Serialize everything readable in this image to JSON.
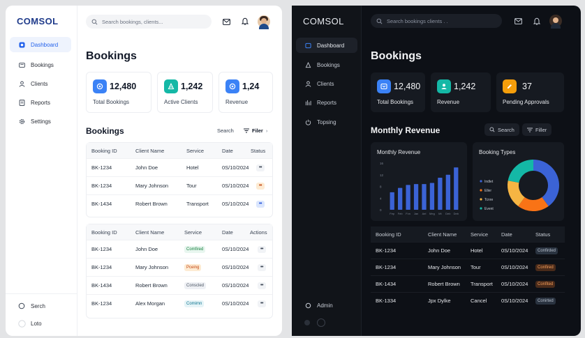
{
  "light": {
    "brand": "COMSOL",
    "nav": [
      {
        "label": "Dashboard",
        "icon": "dashboard-icon"
      },
      {
        "label": "Bookings",
        "icon": "bookings-icon"
      },
      {
        "label": "Clients",
        "icon": "clients-icon"
      },
      {
        "label": "Reports",
        "icon": "reports-icon"
      },
      {
        "label": "Settings",
        "icon": "settings-icon"
      }
    ],
    "bottom_nav": [
      {
        "label": "Serch",
        "icon": "search-circle-icon"
      },
      {
        "label": "Loto",
        "icon": "circle-icon"
      }
    ],
    "search_placeholder": "Search bookings, clients...",
    "page_title": "Bookings",
    "stats": [
      {
        "value": "12,480",
        "label": "Total Bookings",
        "color": "#3b82f6",
        "icon": "bookings-stat-icon"
      },
      {
        "value": "1,242",
        "label": "Active Clients",
        "color": "#14b8a6",
        "icon": "clients-stat-icon"
      },
      {
        "value": "1,24",
        "label": "Revenue",
        "color": "#3b82f6",
        "icon": "revenue-stat-icon"
      }
    ],
    "section_title": "Bookings",
    "search_label": "Search",
    "filter_label": "Filer",
    "table1": {
      "headers": [
        "Booking ID",
        "Client Name",
        "Service",
        "Date",
        "Status"
      ],
      "rows": [
        {
          "id": "BK-1234",
          "client": "John Doe",
          "service": "Hotel",
          "date": "0S/10/2024",
          "tone": "#f1f3f6",
          "fg": "#374151"
        },
        {
          "id": "BK-1234",
          "client": "Mary Johnson",
          "service": "Tour",
          "date": "0S/10/2024",
          "tone": "#fdebd3",
          "fg": "#c2410c"
        },
        {
          "id": "BK-1434",
          "client": "Robert Brown",
          "service": "Transport",
          "date": "0S/10/2024",
          "tone": "#dbe6fd",
          "fg": "#1d4ed8"
        }
      ]
    },
    "table2": {
      "headers": [
        "Booking ID",
        "Client Name",
        "Service",
        "Date",
        "Actions"
      ],
      "rows": [
        {
          "id": "BK-1234",
          "client": "John Doe",
          "badge": "Comfired",
          "bg": "#e8f6ef",
          "fg": "#15803d",
          "date": "0S/10/2024"
        },
        {
          "id": "BK-1234",
          "client": "Mary Johnson",
          "badge": "Pceing",
          "bg": "#fdebd3",
          "fg": "#c2410c",
          "date": "0S/10/2024"
        },
        {
          "id": "BK-1434",
          "client": "Robert Brown",
          "badge": "Conscled",
          "bg": "#eef0f4",
          "fg": "#4b5563",
          "date": "0S/10/2024"
        },
        {
          "id": "BK-1234",
          "client": "Alex Morgan",
          "badge": "Comimn",
          "bg": "#e6f4f7",
          "fg": "#0e7490",
          "date": "0S/10/2024"
        }
      ]
    }
  },
  "dark": {
    "brand": "COMSOL",
    "nav": [
      {
        "label": "Dashboard",
        "icon": "dashboard-icon"
      },
      {
        "label": "Bookings",
        "icon": "bookings-icon"
      },
      {
        "label": "Clients",
        "icon": "clients-icon"
      },
      {
        "label": "Reports",
        "icon": "reports-icon"
      },
      {
        "label": "Topsing",
        "icon": "power-icon"
      }
    ],
    "bottom_nav": [
      {
        "label": "Admin",
        "icon": "admin-icon"
      }
    ],
    "search_placeholder": "Search bookings  clients . .",
    "page_title": "Bookings",
    "stats": [
      {
        "value": "12,480",
        "label": "Total Bookings",
        "color": "#3b82f6",
        "icon": "bookings-stat-icon"
      },
      {
        "value": "1,242",
        "label": "Revenue",
        "color": "#14b8a6",
        "icon": "revenue-stat-icon"
      },
      {
        "value": "37",
        "label": "Pending Approvals",
        "color": "#f59e0b",
        "icon": "pending-stat-icon"
      }
    ],
    "section_title": "Monthly Revenue",
    "search_label": "Search",
    "filter_label": "Filler",
    "table": {
      "headers": [
        "Booking ID",
        "Client Name",
        "Service",
        "Date",
        "Status"
      ],
      "rows": [
        {
          "id": "BK-1234",
          "client": "John Doe",
          "service": "Hotel",
          "date": "0S/10/2024",
          "badge": "Confirded",
          "bg": "#2a3340",
          "fg": "#b7c0cc"
        },
        {
          "id": "BK-1234",
          "client": "Mary Johnson",
          "service": "Tour",
          "date": "0S/10/2024",
          "badge": "Confired",
          "bg": "#4a2b1a",
          "fg": "#f59e5b"
        },
        {
          "id": "BK-1434",
          "client": "Robert Brown",
          "service": "Transport",
          "date": "0S/10/2024",
          "badge": "Confited",
          "bg": "#4a2b1a",
          "fg": "#f59e5b"
        },
        {
          "id": "BK-1334",
          "client": "Jpx Dylke",
          "service": "Cancel",
          "date": "0S/10/2024",
          "badge": "Conirted",
          "bg": "#2a3340",
          "fg": "#b7c0cc"
        }
      ]
    }
  },
  "chart_data": [
    {
      "type": "bar",
      "title": "Monthly Revenue",
      "categories": [
        "Fep",
        "Feb",
        "Fvn",
        "Jan",
        "Ael",
        "Meg",
        "Mt",
        "Deb",
        "Deb"
      ],
      "values": [
        6,
        7.5,
        8.5,
        8.8,
        8.8,
        9.2,
        11,
        12,
        14.5
      ],
      "ylim": [
        0,
        16
      ],
      "yticks": [
        0,
        4,
        8,
        12,
        16
      ],
      "color": "#3b63d6"
    },
    {
      "type": "pie",
      "title": "Booking Types",
      "labels": [
        "Indlet",
        "Eller",
        "Tcnre",
        "Event"
      ],
      "values": [
        40,
        20,
        18,
        22
      ],
      "colors": [
        "#3b63d6",
        "#f97316",
        "#f6b543",
        "#14b8a6"
      ]
    }
  ]
}
